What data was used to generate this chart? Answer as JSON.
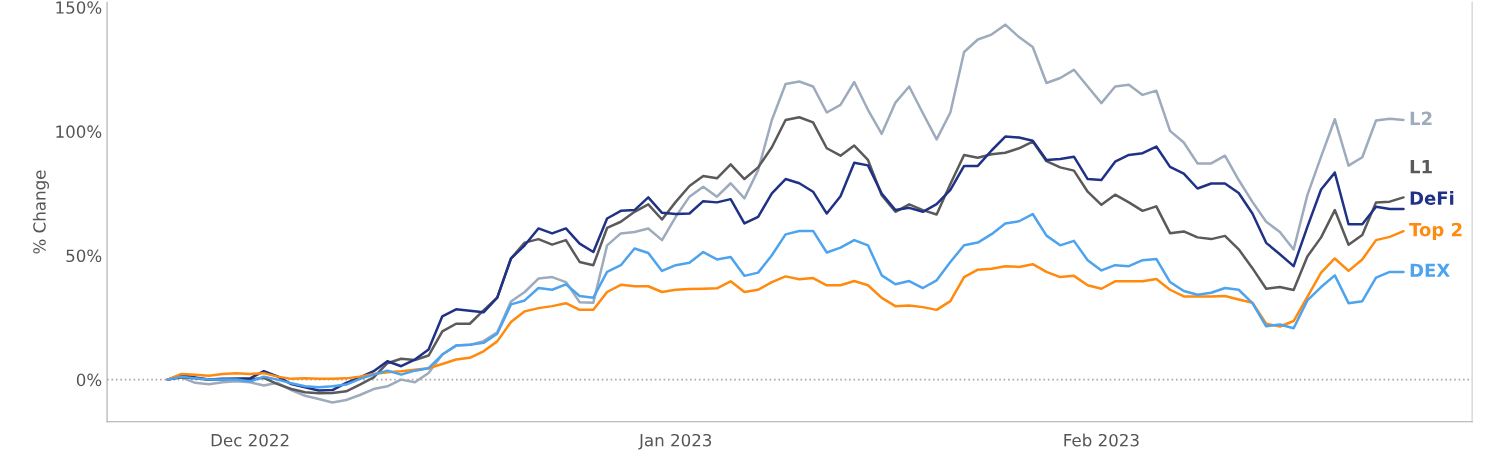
{
  "chart_data": {
    "type": "line",
    "ylabel": "% Change",
    "x": [
      "2022-11-25",
      "2022-11-26",
      "2022-11-27",
      "2022-11-28",
      "2022-11-29",
      "2022-11-30",
      "2022-12-01",
      "2022-12-02",
      "2022-12-03",
      "2022-12-04",
      "2022-12-05",
      "2022-12-06",
      "2022-12-07",
      "2022-12-08",
      "2022-12-09",
      "2022-12-10",
      "2022-12-11",
      "2022-12-12",
      "2022-12-13",
      "2022-12-14",
      "2022-12-15",
      "2022-12-16",
      "2022-12-17",
      "2022-12-18",
      "2022-12-19",
      "2022-12-20",
      "2022-12-21",
      "2022-12-22",
      "2022-12-23",
      "2022-12-24",
      "2022-12-25",
      "2022-12-26",
      "2022-12-27",
      "2022-12-28",
      "2022-12-29",
      "2022-12-30",
      "2022-12-31",
      "2023-01-01",
      "2023-01-02",
      "2023-01-03",
      "2023-01-04",
      "2023-01-05",
      "2023-01-06",
      "2023-01-07",
      "2023-01-08",
      "2023-01-09",
      "2023-01-10",
      "2023-01-11",
      "2023-01-12",
      "2023-01-13",
      "2023-01-14",
      "2023-01-15",
      "2023-01-16",
      "2023-01-17",
      "2023-01-18",
      "2023-01-19",
      "2023-01-20",
      "2023-01-21",
      "2023-01-22",
      "2023-01-23",
      "2023-01-24",
      "2023-01-25",
      "2023-01-26",
      "2023-01-27",
      "2023-01-28",
      "2023-01-29",
      "2023-01-30",
      "2023-01-31",
      "2023-02-01",
      "2023-02-02",
      "2023-02-03",
      "2023-02-04",
      "2023-02-05",
      "2023-02-06",
      "2023-02-07",
      "2023-02-08",
      "2023-02-09",
      "2023-02-10",
      "2023-02-11",
      "2023-02-12",
      "2023-02-13",
      "2023-02-14",
      "2023-02-15",
      "2023-02-16",
      "2023-02-17",
      "2023-02-18",
      "2023-02-19",
      "2023-02-20",
      "2023-02-21",
      "2023-02-22",
      "2023-02-23"
    ],
    "series": [
      {
        "name": "L2",
        "color": "#9eabbd",
        "values": [
          0,
          0.9,
          -1.3,
          -1.9,
          -1.1,
          -0.7,
          -1.1,
          -2.4,
          -1.3,
          -4.2,
          -6.5,
          -7.8,
          -9.2,
          -8.2,
          -6.2,
          -3.8,
          -2.7,
          0,
          -1.1,
          2.7,
          10.1,
          13.7,
          14.0,
          15.5,
          19.1,
          31.5,
          35.3,
          40.7,
          41.3,
          39.3,
          31.2,
          31.0,
          54.1,
          58.9,
          59.5,
          60.9,
          56.2,
          65.6,
          73.7,
          77.7,
          73.7,
          79.1,
          73.0,
          84.4,
          104.6,
          119.1,
          120.1,
          118.1,
          107.6,
          110.7,
          119.9,
          108.7,
          99.0,
          111.6,
          118.1,
          107.3,
          96.8,
          107.6,
          132,
          137,
          139,
          143,
          138,
          134,
          119.5,
          121.5,
          124.8,
          118.1,
          111.4,
          118.1,
          118.8,
          114.7,
          116.4,
          100.2,
          95.5,
          87.1,
          87.1,
          90.2,
          80.4,
          71.6,
          63.6,
          59.5,
          52.4,
          74.3,
          89.8,
          104.9,
          86.2,
          89.6,
          104.4,
          105.1,
          104.6
        ]
      },
      {
        "name": "L1",
        "color": "#5a5a5a",
        "values": [
          0,
          0.9,
          0.5,
          -0.1,
          0,
          0.3,
          0,
          0.7,
          -1.8,
          -3.8,
          -5.1,
          -5.5,
          -5.4,
          -4.7,
          -2.0,
          0.9,
          6.6,
          8.4,
          7.9,
          9.7,
          19.4,
          22.5,
          22.5,
          27.9,
          33,
          48.8,
          55.2,
          56.6,
          54.4,
          56.2,
          47.4,
          46.1,
          61.1,
          63.6,
          67.6,
          70.6,
          64.5,
          71.6,
          78.0,
          82.0,
          81.1,
          86.7,
          80.8,
          85.5,
          93.6,
          104.6,
          105.7,
          103.6,
          93.2,
          90.2,
          94.3,
          88.5,
          74.3,
          67.6,
          70.6,
          68.3,
          66.5,
          78.8,
          90.5,
          89.4,
          90.8,
          91.4,
          93.2,
          95.9,
          88,
          85.5,
          84.2,
          75.7,
          70.4,
          74.5,
          71.4,
          68.0,
          69.8,
          59.0,
          59.7,
          57.3,
          56.6,
          57.9,
          52.5,
          44.9,
          36.6,
          37.3,
          36.1,
          49.6,
          57.3,
          68.3,
          54.3,
          58.3,
          71.4,
          71.7,
          73.4
        ]
      },
      {
        "name": "DeFi",
        "color": "#1f3285",
        "values": [
          0,
          1.9,
          0.9,
          0,
          0.3,
          0.3,
          0.5,
          3.4,
          1.3,
          -1.8,
          -3.1,
          -4.4,
          -4.2,
          -1.3,
          0.9,
          3.4,
          7.4,
          5.4,
          8.1,
          12.1,
          25.5,
          28.3,
          27.7,
          27.1,
          33,
          48.8,
          54.1,
          60.9,
          58.9,
          60.9,
          54.8,
          51.4,
          64.9,
          68.0,
          68.3,
          73.4,
          67.2,
          66.7,
          66.9,
          71.9,
          71.4,
          72.7,
          62.9,
          65.6,
          75.0,
          80.8,
          79.1,
          75.7,
          66.9,
          73.9,
          87.4,
          86.3,
          75.0,
          68.3,
          69.2,
          67.6,
          70.7,
          76.4,
          86.1,
          86.1,
          92.3,
          97.9,
          97.5,
          96.2,
          88.5,
          88.9,
          89.8,
          80.8,
          80.4,
          87.8,
          90.5,
          91.2,
          93.9,
          85.7,
          83.0,
          77.0,
          79.0,
          79.0,
          75.2,
          66.9,
          55.1,
          50.5,
          45.7,
          61.5,
          76.6,
          83.4,
          62.6,
          62.6,
          69.6,
          68.7,
          68.7
        ]
      },
      {
        "name": "Top 2",
        "color": "#ff8a0d",
        "values": [
          0,
          2.3,
          2.0,
          1.6,
          2.3,
          2.6,
          2.3,
          2.6,
          1.2,
          0.3,
          0.5,
          0.3,
          0.3,
          0.5,
          1.2,
          2.3,
          3.0,
          3.4,
          4.0,
          4.6,
          6.3,
          8.1,
          8.8,
          11.4,
          15.4,
          23.2,
          27.5,
          28.8,
          29.6,
          30.8,
          28.1,
          28.1,
          35.3,
          38.2,
          37.6,
          37.6,
          35.3,
          36.2,
          36.5,
          36.6,
          36.8,
          39.6,
          35.3,
          36.2,
          39.3,
          41.6,
          40.4,
          40.9,
          38.0,
          38.0,
          39.7,
          38.0,
          32.9,
          29.6,
          29.9,
          29.2,
          28.1,
          31.6,
          41.3,
          44.3,
          44.7,
          45.7,
          45.4,
          46.5,
          43.4,
          41.3,
          41.8,
          38.0,
          36.6,
          39.6,
          39.6,
          39.6,
          40.5,
          36.2,
          33.5,
          33.5,
          33.5,
          33.7,
          32.3,
          31.0,
          22.5,
          21.4,
          23.6,
          33.3,
          43.1,
          48.8,
          43.8,
          48.4,
          56.2,
          57.5,
          59.8
        ]
      },
      {
        "name": "DEX",
        "color": "#4da3ee",
        "values": [
          0,
          1.2,
          0.5,
          0,
          0,
          0,
          -0.8,
          1.2,
          0,
          -1.5,
          -2.7,
          -3.1,
          -2.7,
          -2.0,
          0.3,
          2.0,
          3.6,
          2.0,
          3.6,
          4.6,
          10.1,
          13.7,
          14.0,
          14.8,
          18.5,
          30.3,
          31.9,
          36.9,
          36.2,
          38.4,
          33.7,
          33.0,
          43.4,
          46.1,
          52.8,
          51.0,
          43.8,
          46.1,
          47.1,
          51.4,
          48.4,
          49.4,
          41.8,
          43.1,
          50.1,
          58.5,
          59.9,
          59.9,
          51.2,
          53.2,
          56.2,
          54.1,
          42.0,
          38.4,
          39.7,
          36.9,
          40.0,
          47.4,
          54.1,
          55.2,
          58.6,
          62.9,
          63.8,
          66.7,
          58,
          54.1,
          55.9,
          48.1,
          44.0,
          46.1,
          45.7,
          48.1,
          48.6,
          39.3,
          35.7,
          34.2,
          35.0,
          36.9,
          36.2,
          30.8,
          21.5,
          22.2,
          20.7,
          31.9,
          37.3,
          42.0,
          30.8,
          31.6,
          41.1,
          43.4,
          43.4
        ]
      }
    ],
    "xlim": [
      "2022-11-20T14:00",
      "2023-02-28"
    ],
    "xticks": [
      {
        "value": "2022-12-01",
        "label": "Dec 2022"
      },
      {
        "value": "2023-01-01",
        "label": "Jan 2023"
      },
      {
        "value": "2023-02-01",
        "label": "Feb 2023"
      }
    ],
    "ylim": [
      -17,
      152
    ],
    "yticks": [
      {
        "value": 0,
        "label": "0%"
      },
      {
        "value": 50,
        "label": "50%"
      },
      {
        "value": 100,
        "label": "100%"
      },
      {
        "value": 150,
        "label": "150%"
      }
    ],
    "ref_lines": [
      {
        "axis": "y",
        "value": 0,
        "color": "#aaaaaa",
        "line_style": "dotted"
      }
    ],
    "grid": false,
    "legend": false,
    "marker": "none",
    "line_style": "solid"
  }
}
